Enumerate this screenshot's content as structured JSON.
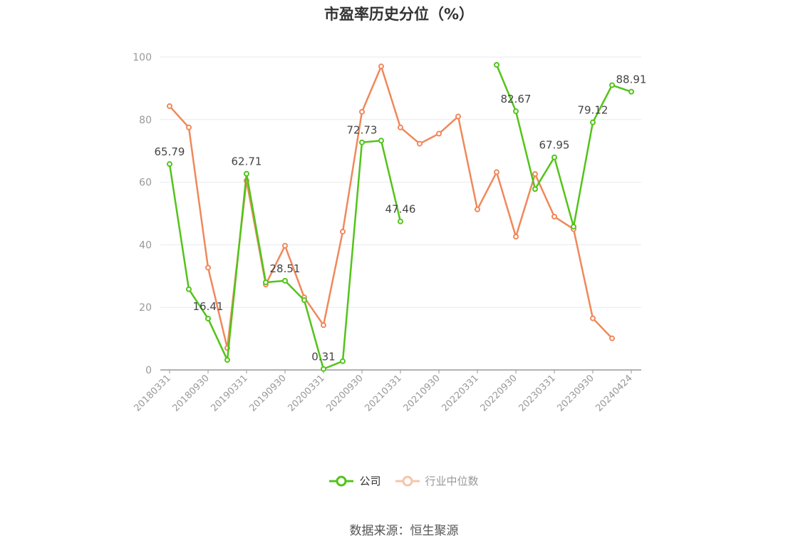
{
  "chart_data": {
    "type": "line",
    "title": "市盈率历史分位（%）",
    "xlabel": "",
    "ylabel": "",
    "ylim": [
      0,
      100
    ],
    "yticks": [
      0,
      20,
      40,
      60,
      80,
      100
    ],
    "x": [
      "20180331",
      "20180630",
      "20180930",
      "20181231",
      "20190331",
      "20190630",
      "20190930",
      "20191231",
      "20200331",
      "20200630",
      "20200930",
      "20201231",
      "20210331",
      "20210630",
      "20210930",
      "20211231",
      "20220331",
      "20220630",
      "20220930",
      "20221231",
      "20230331",
      "20230630",
      "20230930",
      "20231231",
      "20240424"
    ],
    "xtick_labels": [
      "20180331",
      "20180930",
      "20190331",
      "20190930",
      "20200331",
      "20200930",
      "20210331",
      "20210930",
      "20220331",
      "20220930",
      "20230331",
      "20230930",
      "20240424"
    ],
    "series": [
      {
        "name": "公司",
        "color": "#52c41a",
        "values": [
          65.79,
          25.8,
          16.41,
          3.2,
          62.71,
          28.0,
          28.51,
          22.3,
          0.31,
          2.8,
          72.73,
          73.3,
          47.46,
          null,
          null,
          null,
          null,
          97.5,
          82.67,
          57.8,
          67.95,
          45.8,
          79.12,
          91.0,
          88.91
        ],
        "labeled_indices": [
          0,
          2,
          4,
          6,
          8,
          10,
          12,
          18,
          20,
          22,
          24
        ]
      },
      {
        "name": "行业中位数",
        "color": "#f0885a",
        "values": [
          84.3,
          77.5,
          32.7,
          7.0,
          60.5,
          27.3,
          39.7,
          23.2,
          14.3,
          44.2,
          82.5,
          97.0,
          77.5,
          72.3,
          75.5,
          81.0,
          51.3,
          63.2,
          42.6,
          62.6,
          49.0,
          45.0,
          16.5,
          10.1,
          null
        ]
      }
    ],
    "legend_position": "bottom"
  },
  "source": "数据来源：恒生聚源"
}
